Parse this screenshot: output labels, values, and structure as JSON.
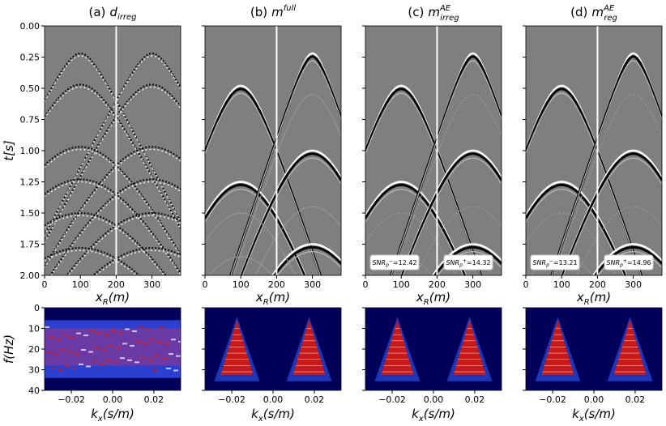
{
  "panels": [
    {
      "title": {
        "label": "(a)",
        "symbol": "d",
        "sub": "irreg"
      }
    },
    {
      "title": {
        "label": "(b)",
        "symbol": "m",
        "sup": "full"
      }
    },
    {
      "title": {
        "label": "(c)",
        "symbol": "m",
        "sup": "AE",
        "sub": "irreg"
      },
      "snr": [
        {
          "name": "SNR",
          "sub": "p",
          "sup": "−",
          "sign": "=",
          "value": 12.42
        },
        {
          "name": "SNR",
          "sub": "p",
          "sup": "+",
          "sign": "=",
          "value": 14.32
        }
      ]
    },
    {
      "title": {
        "label": "(d)",
        "symbol": "m",
        "sup": "AE",
        "sub": "reg"
      },
      "snr": [
        {
          "name": "SNR",
          "sub": "p",
          "sup": "−",
          "sign": "=",
          "value": 13.21
        },
        {
          "name": "SNR",
          "sub": "p",
          "sup": "+",
          "sign": "=",
          "value": 14.96
        }
      ]
    }
  ],
  "top_axes": {
    "ylabel": "t[s]",
    "xlabel": {
      "symbol": "x",
      "sub": "R",
      "unit": "(m)"
    },
    "xlim": [
      0,
      380
    ],
    "ylim": [
      0,
      2
    ],
    "xticks": [
      0,
      100,
      200,
      300
    ],
    "yticks": [
      {
        "value": 0,
        "label": "0.00"
      },
      {
        "value": 0.25,
        "label": "0.25"
      },
      {
        "value": 0.5,
        "label": "0.50"
      },
      {
        "value": 0.75,
        "label": "0.75"
      },
      {
        "value": 1,
        "label": "1.00"
      },
      {
        "value": 1.25,
        "label": "1.25"
      },
      {
        "value": 1.5,
        "label": "1.50"
      },
      {
        "value": 1.75,
        "label": "1.75"
      },
      {
        "value": 2,
        "label": "2.00"
      }
    ]
  },
  "bottom_axes": {
    "ylabel": "f(Hz)",
    "xlabel": {
      "symbol": "k",
      "sub": "x",
      "unit": "(s/m)"
    },
    "xlim": [
      -0.033,
      0.033
    ],
    "ylim": [
      0,
      40
    ],
    "xticks": [
      {
        "value": -0.02,
        "label": "−0.02"
      },
      {
        "value": 0,
        "label": "0.00"
      },
      {
        "value": 0.02,
        "label": "0.02"
      }
    ],
    "yticks": [
      0,
      10,
      20,
      30,
      40
    ]
  }
}
